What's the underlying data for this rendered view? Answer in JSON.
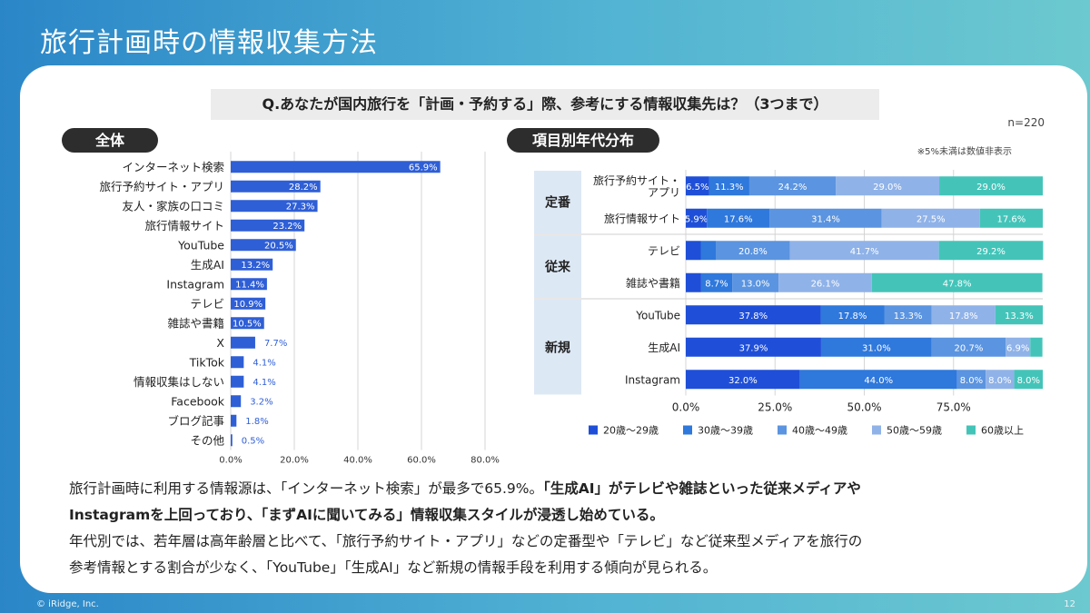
{
  "header": {
    "title": "旅行計画時の情報収集方法"
  },
  "question": "Q.あなたが国内旅行を「計画・予約する」際、参考にする情報収集先は？（3つまで）",
  "sample_note": "n=220",
  "small_note": "※5%未満は数値非表示",
  "labels": {
    "overall": "全体",
    "by_age": "項目別年代分布"
  },
  "colors": {
    "bar": "#2f5fd6",
    "age": [
      "#1f4fd8",
      "#2f78dc",
      "#5b94e0",
      "#8fb2e8",
      "#44c4b9"
    ],
    "group_bg": "#dde8f5"
  },
  "chart_data": [
    {
      "type": "bar",
      "orientation": "horizontal",
      "title": "全体",
      "categories": [
        "インターネット検索",
        "旅行予約サイト・アプリ",
        "友人・家族の口コミ",
        "旅行情報サイト",
        "YouTube",
        "生成AI",
        "Instagram",
        "テレビ",
        "雑誌や書籍",
        "X",
        "TikTok",
        "情報収集はしない",
        "Facebook",
        "ブログ記事",
        "その他"
      ],
      "values": [
        65.9,
        28.2,
        27.3,
        23.2,
        20.5,
        13.2,
        11.4,
        10.9,
        10.5,
        7.7,
        4.1,
        4.1,
        3.2,
        1.8,
        0.5
      ],
      "value_labels": [
        "65.9%",
        "28.2%",
        "27.3%",
        "23.2%",
        "20.5%",
        "13.2%",
        "11.4%",
        "10.9%",
        "10.5%",
        "7.7%",
        "4.1%",
        "4.1%",
        "3.2%",
        "1.8%",
        "0.5%"
      ],
      "xlim": [
        0,
        80
      ],
      "xticks": [
        0,
        20,
        40,
        60,
        80
      ],
      "xtick_labels": [
        "0.0%",
        "20.0%",
        "40.0%",
        "60.0%",
        "80.0%"
      ],
      "grid": true
    },
    {
      "type": "bar",
      "orientation": "horizontal",
      "stacked": true,
      "title": "項目別年代分布",
      "groups": [
        {
          "name": "定番",
          "categories": [
            "旅行予約サイト・アプリ",
            "旅行情報サイト"
          ]
        },
        {
          "name": "従来",
          "categories": [
            "テレビ",
            "雑誌や書籍"
          ]
        },
        {
          "name": "新規",
          "categories": [
            "YouTube",
            "生成AI",
            "Instagram"
          ]
        }
      ],
      "categories": [
        "旅行予約サイト・アプリ",
        "旅行情報サイト",
        "テレビ",
        "雑誌や書籍",
        "YouTube",
        "生成AI",
        "Instagram"
      ],
      "category_labels": [
        "旅行予約サイト・\nアプリ",
        "旅行情報サイト",
        "テレビ",
        "雑誌や書籍",
        "YouTube",
        "生成AI",
        "Instagram"
      ],
      "series": [
        {
          "name": "20歳～29歳",
          "values": [
            6.5,
            5.9,
            4.2,
            4.3,
            37.8,
            37.9,
            32.0
          ],
          "labels": [
            "6.5%",
            "5.9%",
            "",
            "",
            "37.8%",
            "37.9%",
            "32.0%"
          ]
        },
        {
          "name": "30歳～39歳",
          "values": [
            11.3,
            17.6,
            4.2,
            8.7,
            17.8,
            31.0,
            44.0
          ],
          "labels": [
            "11.3%",
            "17.6%",
            "",
            "8.7%",
            "17.8%",
            "31.0%",
            "44.0%"
          ]
        },
        {
          "name": "40歳～49歳",
          "values": [
            24.2,
            31.4,
            20.8,
            13.0,
            13.3,
            20.7,
            8.0
          ],
          "labels": [
            "24.2%",
            "31.4%",
            "20.8%",
            "13.0%",
            "13.3%",
            "20.7%",
            "8.0%"
          ]
        },
        {
          "name": "50歳～59歳",
          "values": [
            29.0,
            27.5,
            41.7,
            26.1,
            17.8,
            6.9,
            8.0
          ],
          "labels": [
            "29.0%",
            "27.5%",
            "41.7%",
            "26.1%",
            "17.8%",
            "6.9%",
            "8.0%"
          ]
        },
        {
          "name": "60歳以上",
          "values": [
            29.0,
            17.6,
            29.2,
            47.8,
            13.3,
            3.4,
            8.0
          ],
          "labels": [
            "29.0%",
            "17.6%",
            "29.2%",
            "47.8%",
            "13.3%",
            "",
            "8.0%"
          ]
        }
      ],
      "xlim": [
        0,
        100
      ],
      "xticks": [
        0,
        25,
        50,
        75
      ],
      "xtick_labels": [
        "0.0%",
        "25.0%",
        "50.0%",
        "75.0%"
      ],
      "legend": "bottom",
      "grid": true
    }
  ],
  "summary": {
    "line1_a": "旅行計画時に利用する情報源は、「インターネット検索」が最多で65.9%。",
    "line1_b": "「生成AI」がテレビや雑誌といった従来メディアや",
    "line2": "Instagramを上回っており、「まずAIに聞いてみる」情報収集スタイルが浸透し始めている。",
    "line3": "年代別では、若年層は高年齢層と比べて、「旅行予約サイト・アプリ」などの定番型や「テレビ」など従来型メディアを旅行の",
    "line4": "参考情報とする割合が少なく、「YouTube」「生成AI」など新規の情報手段を利用する傾向が見られる。"
  },
  "footer": {
    "copyright": "© iRidge, Inc.",
    "page": "12"
  }
}
